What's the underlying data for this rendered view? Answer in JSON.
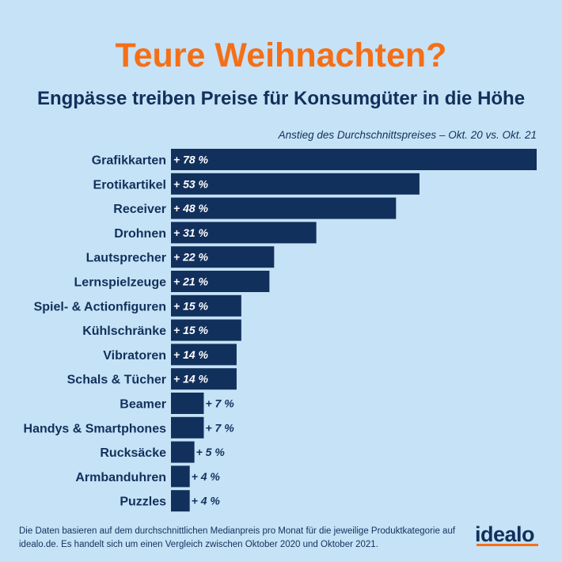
{
  "header": {
    "title": "Teure Weihnachten?",
    "subtitle": "Engpässe treiben Preise für Konsumgüter in die Höhe"
  },
  "chart_data": {
    "type": "bar",
    "orientation": "horizontal",
    "caption": "Anstieg des Durchschnittspreises – Okt. 20 vs. Okt. 21",
    "categories": [
      "Grafikkarten",
      "Erotikartikel",
      "Receiver",
      "Drohnen",
      "Lautsprecher",
      "Lernspielzeuge",
      "Spiel- & Actionfiguren",
      "Kühlschränke",
      "Vibratoren",
      "Schals & Tücher",
      "Beamer",
      "Handys & Smartphones",
      "Rucksäcke",
      "Armbanduhren",
      "Puzzles"
    ],
    "values": [
      78,
      53,
      48,
      31,
      22,
      21,
      15,
      15,
      14,
      14,
      7,
      7,
      5,
      4,
      4
    ],
    "data_labels": [
      "+ 78 %",
      "+ 53 %",
      "+ 48 %",
      "+ 31 %",
      "+ 22 %",
      "+ 21 %",
      "+ 15 %",
      "+ 15 %",
      "+ 14 %",
      "+ 14 %",
      "+ 7 %",
      "+ 7 %",
      "+ 5 %",
      "+ 4 %",
      "+ 4 %"
    ],
    "xlim": [
      0,
      78
    ],
    "grid": false,
    "legend": "none",
    "bar_color": "#12305c",
    "text_color": "#12305c"
  },
  "footer": {
    "note_line1": "Die Daten basieren auf dem durchschnittlichen Medianpreis pro Monat für die jeweilige Produktkategorie auf",
    "note_line2": "idealo.de. Es handelt sich um einen Vergleich zwischen Oktober 2020 und Oktober 2021.",
    "logo": "idealo"
  },
  "colors": {
    "background": "#c6e2f6",
    "title": "#f56f17",
    "brand": "#f56f17",
    "dark": "#12305c"
  }
}
